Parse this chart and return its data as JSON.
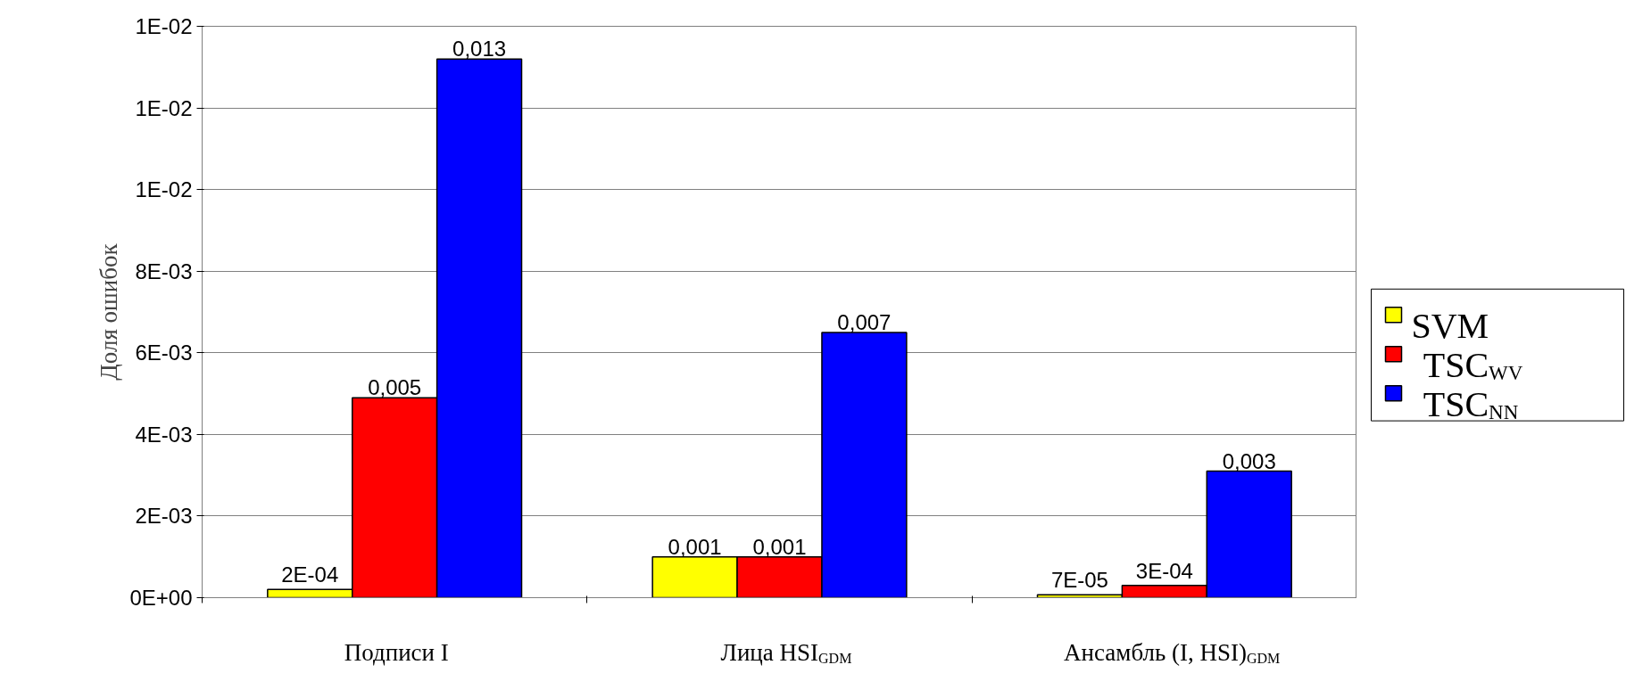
{
  "chart_data": {
    "type": "bar",
    "ylabel": "Доля ошибок",
    "categories": [
      "Подписи I",
      "Лица HSI$_{GDM}$",
      "Ансамбль (I, HSI)$_{GDM}$"
    ],
    "series": [
      {
        "name": "SVM",
        "color": "#ffff00",
        "values": [
          0.0002,
          0.001,
          7e-05
        ],
        "value_labels": [
          "2E-04",
          "0,001",
          "7E-05"
        ]
      },
      {
        "name": "TSC$_{WV}$",
        "color": "#ff0000",
        "values": [
          0.0049,
          0.001,
          0.0003
        ],
        "value_labels": [
          "0,005",
          "0,001",
          "3E-04"
        ]
      },
      {
        "name": "TSC$_{NN}$",
        "color": "#0000ff",
        "values": [
          0.0132,
          0.0065,
          0.0031
        ],
        "value_labels": [
          "0,013",
          "0,007",
          "0,003"
        ]
      }
    ],
    "ylim": [
      0,
      0.014
    ],
    "yticks": [
      {
        "value": 0,
        "label": "0E+00"
      },
      {
        "value": 0.002,
        "label": "2E-03"
      },
      {
        "value": 0.004,
        "label": "4E-03"
      },
      {
        "value": 0.006,
        "label": "6E-03"
      },
      {
        "value": 0.008,
        "label": "8E-03"
      },
      {
        "value": 0.01,
        "label": "1E-02"
      },
      {
        "value": 0.012,
        "label": "1E-02"
      },
      {
        "value": 0.014,
        "label": "1E-02"
      }
    ],
    "grid": "y",
    "legend": "right"
  }
}
